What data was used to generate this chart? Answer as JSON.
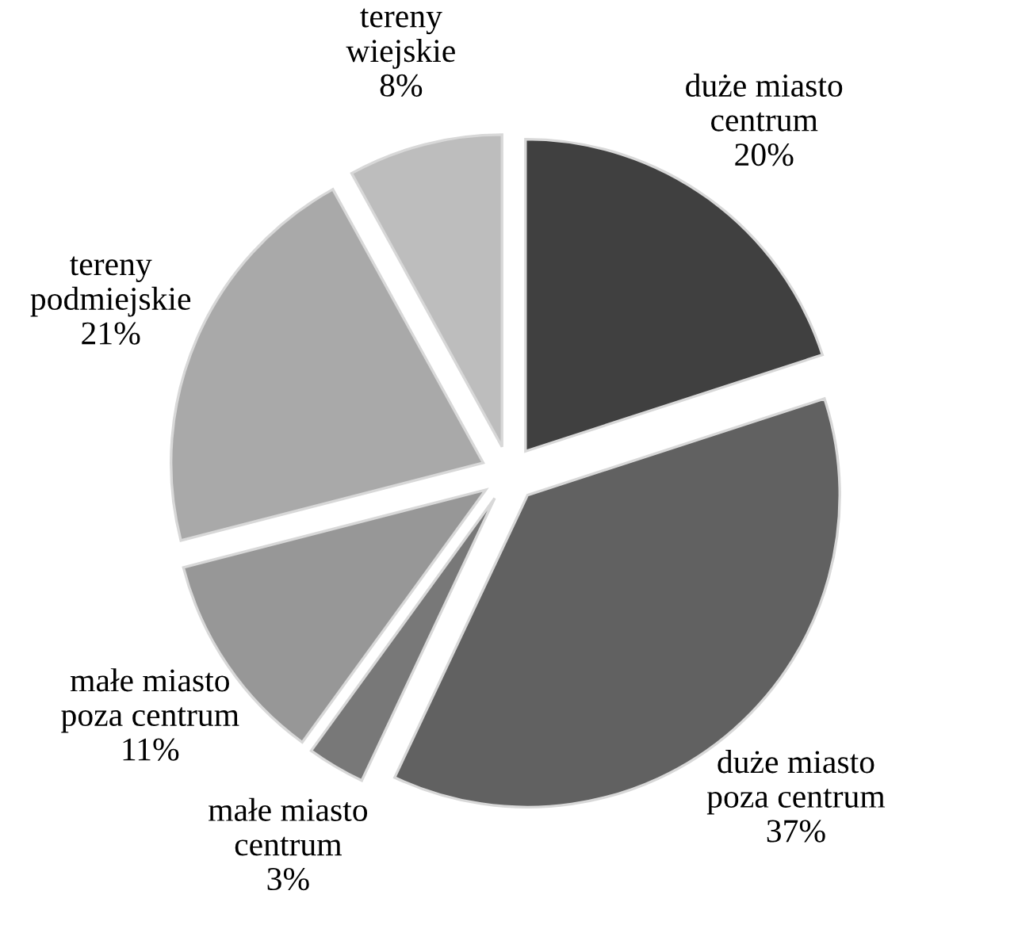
{
  "chart_data": {
    "type": "pie",
    "categories": [
      "duże miasto\ncentrum",
      "duże miasto\npoza centrum",
      "małe miasto\ncentrum",
      "małe miasto\npoza centrum",
      "tereny\npodmiejskie",
      "tereny\nwiejskie"
    ],
    "values": [
      20,
      37,
      3,
      11,
      21,
      8
    ],
    "value_labels": [
      "20%",
      "37%",
      "3%",
      "11%",
      "21%",
      "8%"
    ],
    "colors": [
      "#404040",
      "#616161",
      "#787878",
      "#979797",
      "#a9a9a9",
      "#bdbdbd"
    ]
  }
}
